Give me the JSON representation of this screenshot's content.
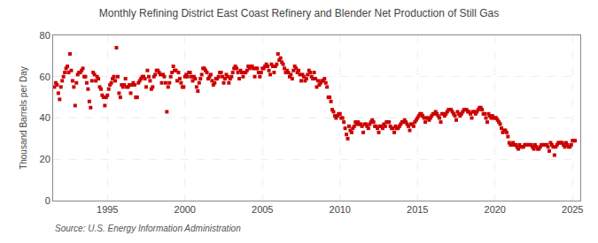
{
  "chart_data": {
    "type": "scatter",
    "title": "Monthly Refining District East Coast Refinery and Blender Net Production of Still Gas",
    "y_label": "Thousand Barrels per Day",
    "annotations": [
      "Source: U.S. Energy Information Administration"
    ],
    "color": "#CC0000",
    "marker": "square",
    "grid": true,
    "xlim": [
      1991.5,
      2025.5
    ],
    "xticks": [
      1995,
      2000,
      2005,
      2010,
      2015,
      2020,
      2025
    ],
    "ylim": [
      0,
      80
    ],
    "yticks": [
      0,
      20,
      40,
      60,
      80
    ],
    "x": [
      1991.583,
      1991.667,
      1991.75,
      1991.833,
      1991.917,
      1992.0,
      1992.083,
      1992.167,
      1992.25,
      1992.333,
      1992.417,
      1992.5,
      1992.583,
      1992.667,
      1992.75,
      1992.833,
      1992.917,
      1993.0,
      1993.083,
      1993.167,
      1993.25,
      1993.333,
      1993.417,
      1993.5,
      1993.583,
      1993.667,
      1993.75,
      1993.833,
      1993.917,
      1994.0,
      1994.083,
      1994.167,
      1994.25,
      1994.333,
      1994.417,
      1994.5,
      1994.583,
      1994.667,
      1994.75,
      1994.833,
      1994.917,
      1995.0,
      1995.083,
      1995.167,
      1995.25,
      1995.333,
      1995.417,
      1995.5,
      1995.583,
      1995.667,
      1995.75,
      1995.833,
      1995.917,
      1996.0,
      1996.083,
      1996.167,
      1996.25,
      1996.333,
      1996.417,
      1996.5,
      1996.583,
      1996.667,
      1996.75,
      1996.833,
      1996.917,
      1997.0,
      1997.083,
      1997.167,
      1997.25,
      1997.333,
      1997.417,
      1997.5,
      1997.583,
      1997.667,
      1997.75,
      1997.833,
      1997.917,
      1998.0,
      1998.083,
      1998.167,
      1998.25,
      1998.333,
      1998.417,
      1998.5,
      1998.583,
      1998.667,
      1998.75,
      1998.833,
      1998.917,
      1999.0,
      1999.083,
      1999.167,
      1999.25,
      1999.333,
      1999.417,
      1999.5,
      1999.583,
      1999.667,
      1999.75,
      1999.833,
      1999.917,
      2000.0,
      2000.083,
      2000.167,
      2000.25,
      2000.333,
      2000.417,
      2000.5,
      2000.583,
      2000.667,
      2000.75,
      2000.833,
      2000.917,
      2001.0,
      2001.083,
      2001.167,
      2001.25,
      2001.333,
      2001.417,
      2001.5,
      2001.583,
      2001.667,
      2001.75,
      2001.833,
      2001.917,
      2002.0,
      2002.083,
      2002.167,
      2002.25,
      2002.333,
      2002.417,
      2002.5,
      2002.583,
      2002.667,
      2002.75,
      2002.833,
      2002.917,
      2003.0,
      2003.083,
      2003.167,
      2003.25,
      2003.333,
      2003.417,
      2003.5,
      2003.583,
      2003.667,
      2003.75,
      2003.833,
      2003.917,
      2004.0,
      2004.083,
      2004.167,
      2004.25,
      2004.333,
      2004.417,
      2004.5,
      2004.583,
      2004.667,
      2004.75,
      2004.833,
      2004.917,
      2005.0,
      2005.083,
      2005.167,
      2005.25,
      2005.333,
      2005.417,
      2005.5,
      2005.583,
      2005.667,
      2005.75,
      2005.833,
      2005.917,
      2006.0,
      2006.083,
      2006.167,
      2006.25,
      2006.333,
      2006.417,
      2006.5,
      2006.583,
      2006.667,
      2006.75,
      2006.833,
      2006.917,
      2007.0,
      2007.083,
      2007.167,
      2007.25,
      2007.333,
      2007.417,
      2007.5,
      2007.583,
      2007.667,
      2007.75,
      2007.833,
      2007.917,
      2008.0,
      2008.083,
      2008.167,
      2008.25,
      2008.333,
      2008.417,
      2008.5,
      2008.583,
      2008.667,
      2008.75,
      2008.833,
      2008.917,
      2009.0,
      2009.083,
      2009.167,
      2009.25,
      2009.333,
      2009.417,
      2009.5,
      2009.583,
      2009.667,
      2009.75,
      2009.833,
      2009.917,
      2010.0,
      2010.083,
      2010.167,
      2010.25,
      2010.333,
      2010.417,
      2010.5,
      2010.583,
      2010.667,
      2010.75,
      2010.833,
      2010.917,
      2011.0,
      2011.083,
      2011.167,
      2011.25,
      2011.333,
      2011.417,
      2011.5,
      2011.583,
      2011.667,
      2011.75,
      2011.833,
      2011.917,
      2012.0,
      2012.083,
      2012.167,
      2012.25,
      2012.333,
      2012.417,
      2012.5,
      2012.583,
      2012.667,
      2012.75,
      2012.833,
      2012.917,
      2013.0,
      2013.083,
      2013.167,
      2013.25,
      2013.333,
      2013.417,
      2013.5,
      2013.583,
      2013.667,
      2013.75,
      2013.833,
      2013.917,
      2014.0,
      2014.083,
      2014.167,
      2014.25,
      2014.333,
      2014.417,
      2014.5,
      2014.583,
      2014.667,
      2014.75,
      2014.833,
      2014.917,
      2015.0,
      2015.083,
      2015.167,
      2015.25,
      2015.333,
      2015.417,
      2015.5,
      2015.583,
      2015.667,
      2015.75,
      2015.833,
      2015.917,
      2016.0,
      2016.083,
      2016.167,
      2016.25,
      2016.333,
      2016.417,
      2016.5,
      2016.583,
      2016.667,
      2016.75,
      2016.833,
      2016.917,
      2017.0,
      2017.083,
      2017.167,
      2017.25,
      2017.333,
      2017.417,
      2017.5,
      2017.583,
      2017.667,
      2017.75,
      2017.833,
      2017.917,
      2018.0,
      2018.083,
      2018.167,
      2018.25,
      2018.333,
      2018.417,
      2018.5,
      2018.583,
      2018.667,
      2018.75,
      2018.833,
      2018.917,
      2019.0,
      2019.083,
      2019.167,
      2019.25,
      2019.333,
      2019.417,
      2019.5,
      2019.583,
      2019.667,
      2019.75,
      2019.833,
      2019.917,
      2020.0,
      2020.083,
      2020.167,
      2020.25,
      2020.333,
      2020.417,
      2020.5,
      2020.583,
      2020.667,
      2020.75,
      2020.833,
      2020.917,
      2021.0,
      2021.083,
      2021.167,
      2021.25,
      2021.333,
      2021.417,
      2021.5,
      2021.583,
      2021.667,
      2021.75,
      2021.833,
      2021.917,
      2022.0,
      2022.083,
      2022.167,
      2022.25,
      2022.333,
      2022.417,
      2022.5,
      2022.583,
      2022.667,
      2022.75,
      2022.833,
      2022.917,
      2023.0,
      2023.083,
      2023.167,
      2023.25,
      2023.333,
      2023.417,
      2023.5,
      2023.583,
      2023.667,
      2023.75,
      2023.833,
      2023.917,
      2024.0,
      2024.083,
      2024.167,
      2024.25,
      2024.333,
      2024.417,
      2024.5,
      2024.583,
      2024.667,
      2024.75,
      2024.833,
      2024.917,
      2025.0,
      2025.083,
      2025.167
    ],
    "values": [
      55,
      57,
      56,
      52,
      49,
      55,
      58,
      60,
      62,
      64,
      65,
      62,
      71,
      63,
      58,
      55,
      46,
      57,
      61,
      62,
      62,
      63,
      64,
      60,
      60,
      57,
      54,
      48,
      45,
      58,
      62,
      61,
      58,
      60,
      59,
      55,
      54,
      51,
      50,
      46,
      50,
      51,
      54,
      56,
      57,
      59,
      60,
      58,
      74,
      60,
      52,
      50,
      56,
      55,
      56,
      59,
      55,
      55,
      56,
      52,
      56,
      57,
      56,
      50,
      50,
      57,
      58,
      59,
      60,
      60,
      59,
      55,
      63,
      60,
      58,
      54,
      55,
      60,
      61,
      63,
      63,
      62,
      61,
      57,
      61,
      60,
      57,
      43,
      55,
      57,
      60,
      62,
      65,
      63,
      63,
      58,
      62,
      59,
      57,
      55,
      55,
      60,
      61,
      60,
      62,
      62,
      60,
      58,
      60,
      59,
      55,
      53,
      57,
      59,
      61,
      64,
      64,
      63,
      62,
      59,
      60,
      61,
      58,
      56,
      57,
      59,
      59,
      60,
      62,
      62,
      60,
      57,
      59,
      61,
      60,
      57,
      59,
      60,
      62,
      64,
      65,
      64,
      62,
      59,
      63,
      62,
      60,
      62,
      62,
      63,
      65,
      64,
      65,
      65,
      64,
      60,
      64,
      64,
      62,
      60,
      62,
      64,
      64,
      65,
      66,
      65,
      63,
      61,
      66,
      65,
      62,
      65,
      66,
      71,
      68,
      69,
      67,
      66,
      64,
      62,
      63,
      62,
      60,
      61,
      59,
      63,
      65,
      64,
      62,
      63,
      61,
      58,
      61,
      60,
      58,
      59,
      61,
      63,
      62,
      60,
      59,
      62,
      59,
      55,
      58,
      56,
      57,
      58,
      58,
      59,
      57,
      55,
      50,
      50,
      48,
      44,
      43,
      41,
      40,
      41,
      42,
      42,
      40,
      40,
      38,
      35,
      32,
      30,
      36,
      34,
      33,
      35,
      36,
      38,
      37,
      38,
      37,
      37,
      36,
      33,
      37,
      37,
      36,
      35,
      37,
      38,
      39,
      38,
      36,
      36,
      35,
      33,
      36,
      36,
      35,
      37,
      36,
      38,
      38,
      38,
      36,
      35,
      35,
      33,
      36,
      35,
      35,
      36,
      37,
      38,
      38,
      39,
      38,
      37,
      36,
      34,
      37,
      37,
      36,
      38,
      39,
      40,
      41,
      42,
      42,
      41,
      40,
      38,
      40,
      40,
      39,
      40,
      41,
      42,
      42,
      43,
      42,
      41,
      40,
      38,
      42,
      42,
      41,
      42,
      43,
      44,
      44,
      44,
      43,
      42,
      41,
      39,
      43,
      42,
      41,
      42,
      43,
      44,
      44,
      44,
      43,
      43,
      42,
      40,
      43,
      43,
      42,
      43,
      44,
      45,
      45,
      44,
      42,
      42,
      40,
      38,
      42,
      41,
      40,
      41,
      40,
      40,
      40,
      39,
      38,
      37,
      35,
      33,
      34,
      34,
      33,
      31,
      28,
      27,
      27,
      28,
      27,
      27,
      26,
      25,
      27,
      26,
      26,
      26,
      27,
      27,
      27,
      27,
      27,
      27,
      26,
      25,
      27,
      26,
      25,
      25,
      26,
      27,
      27,
      27,
      27,
      27,
      26,
      24,
      28,
      27,
      26,
      22,
      26,
      27,
      28,
      28,
      28,
      28,
      27,
      26,
      28,
      27,
      26,
      26,
      27,
      29,
      29,
      29
    ]
  }
}
